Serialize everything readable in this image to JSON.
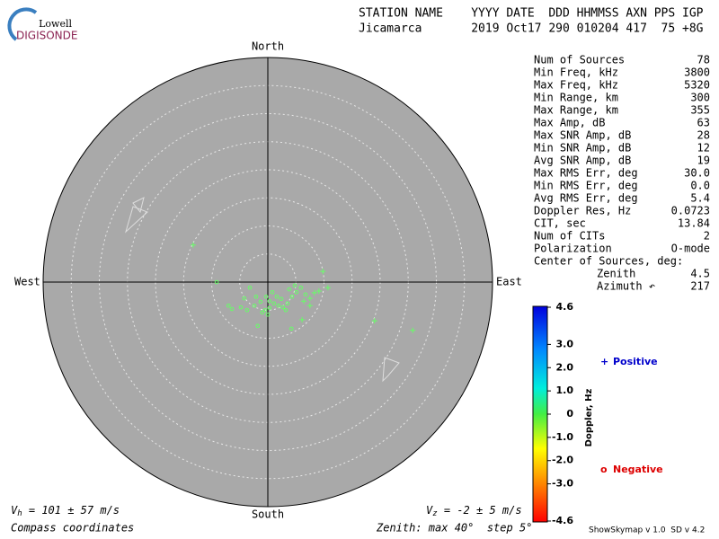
{
  "logo": {
    "top": "Lowell",
    "bottom": "DIGISONDE"
  },
  "header": {
    "labels": "STATION NAME    YYYY DATE  DDD HHMMSS AXN PPS IGP",
    "values": "Jicamarca       2019 Oct17 290 010204 417  75 +8G"
  },
  "stats": [
    [
      "Num of Sources",
      "78"
    ],
    [
      "Min Freq, kHz",
      "3800"
    ],
    [
      "Max Freq, kHz",
      "5320"
    ],
    [
      "Min Range, km",
      "300"
    ],
    [
      "Max Range, km",
      "355"
    ],
    [
      "Max Amp, dB",
      "63"
    ],
    [
      "Max SNR Amp, dB",
      "28"
    ],
    [
      "Min SNR Amp, dB",
      "12"
    ],
    [
      "Avg SNR Amp, dB",
      "19"
    ],
    [
      "Max RMS Err, deg",
      "30.0"
    ],
    [
      "Min RMS Err, deg",
      "0.0"
    ],
    [
      "Avg RMS Err, deg",
      "5.4"
    ],
    [
      "Doppler Res, Hz",
      "0.0723"
    ],
    [
      "CIT, sec",
      "13.84"
    ],
    [
      "Num of CITs",
      "2"
    ],
    [
      "Polarization",
      "O-mode"
    ]
  ],
  "center": {
    "title": "Center of Sources, deg:",
    "zenith_label": "Zenith",
    "zenith": "4.5",
    "azimuth_label": "Azimuth ↶",
    "azimuth": "217"
  },
  "chart_data": {
    "type": "scatter",
    "directions": {
      "north": "North",
      "east": "East",
      "south": "South",
      "west": "West"
    },
    "xlim": [
      -40,
      40
    ],
    "ylim": [
      -40,
      40
    ],
    "rings": [
      5,
      10,
      15,
      20,
      25,
      30,
      35,
      40
    ],
    "series": [
      {
        "name": "Positive",
        "marker": "+",
        "color": "#66ff66",
        "legend_color": "#0000cc",
        "x": [
          -13.3,
          9.8,
          10.7,
          19,
          25.8,
          6.1,
          7.5,
          8.3,
          9.1,
          7.5,
          6.4
        ],
        "y": [
          6.6,
          1.9,
          -1,
          -6.9,
          -8.6,
          -6.7,
          -2.9,
          -1.9,
          -1.6,
          -4.2,
          -3.4
        ]
      },
      {
        "name": "Negative",
        "marker": "o",
        "color": "#66ff66",
        "legend_color": "#dd0000",
        "x": [
          -9.1,
          4.2,
          -1.8,
          -7.0,
          -6.4,
          -4.8,
          -4.2,
          -3.2,
          -2.1,
          -1.3,
          -0.5,
          0.3,
          1.1,
          1.9,
          2.7,
          3.5,
          4.3,
          5.1,
          5.9,
          6.7,
          3.2,
          0,
          -1.0,
          -2.4,
          0.8,
          1.6,
          2.4,
          3.8,
          4.8,
          0.3,
          -0.3,
          -3.7
        ],
        "y": [
          0,
          -8.3,
          -7.8,
          -4.2,
          -4.8,
          -4.5,
          -2.9,
          -1.0,
          -2.6,
          -3.5,
          -5.0,
          -3.4,
          -3.8,
          -4.2,
          -4.5,
          -3.8,
          -2.6,
          -1.8,
          -1.0,
          -2.2,
          -5.0,
          -5.8,
          -5.4,
          -4.2,
          -1.8,
          -2.6,
          -3.0,
          -1.3,
          -0.6,
          -4.6,
          -2.6,
          -5.0
        ]
      }
    ]
  },
  "colorbar": {
    "title": "Doppler, Hz",
    "ylim": [
      -4.6,
      4.6
    ],
    "ticks": [
      4.6,
      {
        "value": 3,
        "label": "3.0"
      },
      {
        "value": 2,
        "label": "2.0"
      },
      {
        "value": 1,
        "label": "1.0"
      },
      0,
      {
        "value": -1,
        "label": "-1.0"
      },
      {
        "value": -2,
        "label": "-2.0"
      },
      {
        "value": -3,
        "label": "-3.0"
      },
      -4.6
    ]
  },
  "footer": {
    "vh_symbol": "V",
    "vh_sub": "h",
    "vh": " = 101 ± 57 m/s",
    "vz_symbol": "V",
    "vz_sub": "z",
    "vz": " = -2 ± 5 m/s",
    "compass": "Compass coordinates",
    "zenith": "Zenith: max 40°  step 5°",
    "version": "ShowSkymap v 1.0  SD v 4.2"
  }
}
